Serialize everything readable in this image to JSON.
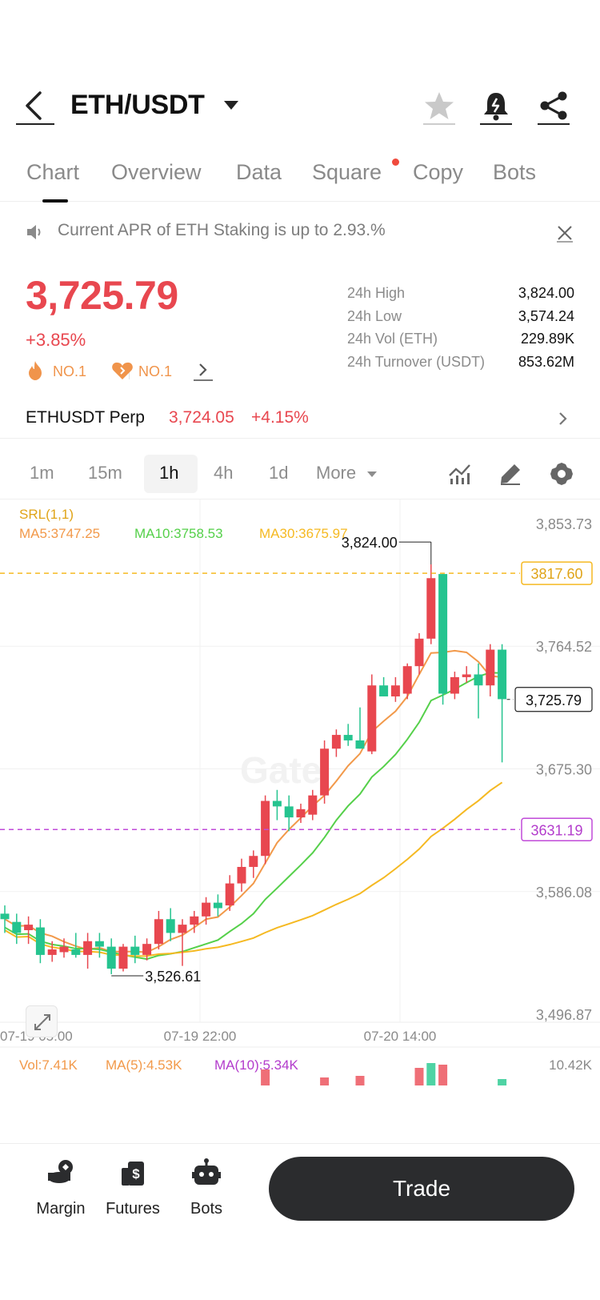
{
  "header": {
    "pair": "ETH/USDT",
    "icons": [
      "back-arrow-icon",
      "chevron-down-icon",
      "star-icon",
      "bell-icon",
      "share-icon"
    ]
  },
  "tabs": [
    {
      "label": "Chart",
      "active": true
    },
    {
      "label": "Overview"
    },
    {
      "label": "Data"
    },
    {
      "label": "Square",
      "badge": true
    },
    {
      "label": "Copy"
    },
    {
      "label": "Bots"
    }
  ],
  "announcement": {
    "text": "Current APR of ETH Staking is up to 2.93.%"
  },
  "price": {
    "last": "3,725.79",
    "change": "+3.85%",
    "rank_hot": "NO.1",
    "rank_fav": "NO.1"
  },
  "stats": [
    {
      "label": "24h High",
      "value": "3,824.00"
    },
    {
      "label": "24h Low",
      "value": "3,574.24"
    },
    {
      "label": "24h Vol (ETH)",
      "value": "229.89K"
    },
    {
      "label": "24h Turnover (USDT)",
      "value": "853.62M"
    }
  ],
  "perp": {
    "name": "ETHUSDT Perp",
    "price": "3,724.05",
    "change": "+4.15%"
  },
  "timeframes": [
    {
      "label": "1m"
    },
    {
      "label": "15m"
    },
    {
      "label": "1h",
      "active": true
    },
    {
      "label": "4h"
    },
    {
      "label": "1d"
    },
    {
      "label": "More"
    }
  ],
  "chart_data": {
    "type": "candlestick",
    "indicator_label": "SRL(1,1)",
    "ma_labels": {
      "ma5": "MA5:3747.25",
      "ma10": "MA10:3758.53",
      "ma30": "MA30:3675.97"
    },
    "colors": {
      "up": "#e8474f",
      "down": "#25c48f",
      "ma5": "#f2994a",
      "ma10": "#55d04a",
      "ma30": "#f5b922",
      "srl_high": "#f5b922",
      "srl_low": "#c04ad8"
    },
    "y_ticks": [
      "3,853.73",
      "3,764.52",
      "3,675.30",
      "3,586.08",
      "3,496.87"
    ],
    "ylim": [
      3496.87,
      3853.73
    ],
    "x_ticks": [
      "07-19 05:00",
      "07-19 22:00",
      "07-20 14:00"
    ],
    "high_label": "3,824.00",
    "low_label": "3,526.61",
    "srl_high": "3817.60",
    "srl_low": "3631.19",
    "srl_high_value": 3817.6,
    "srl_low_value": 3631.19,
    "last_label": "3,725.79",
    "last_value": 3725.79,
    "watermark": "Gate",
    "candles": [
      {
        "o": 3570,
        "h": 3576,
        "l": 3556,
        "c": 3566
      },
      {
        "o": 3564,
        "h": 3570,
        "l": 3548,
        "c": 3556
      },
      {
        "o": 3558,
        "h": 3568,
        "l": 3548,
        "c": 3562
      },
      {
        "o": 3560,
        "h": 3566,
        "l": 3534,
        "c": 3540
      },
      {
        "o": 3540,
        "h": 3550,
        "l": 3535,
        "c": 3544
      },
      {
        "o": 3542,
        "h": 3552,
        "l": 3538,
        "c": 3546
      },
      {
        "o": 3544,
        "h": 3556,
        "l": 3538,
        "c": 3540
      },
      {
        "o": 3540,
        "h": 3556,
        "l": 3530,
        "c": 3550
      },
      {
        "o": 3550,
        "h": 3556,
        "l": 3538,
        "c": 3546
      },
      {
        "o": 3546,
        "h": 3552,
        "l": 3526,
        "c": 3530
      },
      {
        "o": 3530,
        "h": 3548,
        "l": 3528,
        "c": 3546
      },
      {
        "o": 3546,
        "h": 3554,
        "l": 3534,
        "c": 3540
      },
      {
        "o": 3540,
        "h": 3552,
        "l": 3536,
        "c": 3548
      },
      {
        "o": 3548,
        "h": 3572,
        "l": 3544,
        "c": 3566
      },
      {
        "o": 3566,
        "h": 3574,
        "l": 3550,
        "c": 3556
      },
      {
        "o": 3556,
        "h": 3566,
        "l": 3532,
        "c": 3562
      },
      {
        "o": 3562,
        "h": 3572,
        "l": 3556,
        "c": 3568
      },
      {
        "o": 3568,
        "h": 3582,
        "l": 3562,
        "c": 3578
      },
      {
        "o": 3578,
        "h": 3584,
        "l": 3568,
        "c": 3574
      },
      {
        "o": 3576,
        "h": 3598,
        "l": 3572,
        "c": 3592
      },
      {
        "o": 3592,
        "h": 3610,
        "l": 3586,
        "c": 3604
      },
      {
        "o": 3604,
        "h": 3616,
        "l": 3596,
        "c": 3612
      },
      {
        "o": 3612,
        "h": 3656,
        "l": 3606,
        "c": 3652
      },
      {
        "o": 3652,
        "h": 3660,
        "l": 3638,
        "c": 3648
      },
      {
        "o": 3648,
        "h": 3656,
        "l": 3630,
        "c": 3640
      },
      {
        "o": 3640,
        "h": 3650,
        "l": 3636,
        "c": 3646
      },
      {
        "o": 3642,
        "h": 3660,
        "l": 3638,
        "c": 3656
      },
      {
        "o": 3656,
        "h": 3696,
        "l": 3650,
        "c": 3690
      },
      {
        "o": 3690,
        "h": 3704,
        "l": 3684,
        "c": 3700
      },
      {
        "o": 3700,
        "h": 3708,
        "l": 3692,
        "c": 3696
      },
      {
        "o": 3696,
        "h": 3720,
        "l": 3690,
        "c": 3690
      },
      {
        "o": 3688,
        "h": 3744,
        "l": 3686,
        "c": 3736
      },
      {
        "o": 3736,
        "h": 3742,
        "l": 3728,
        "c": 3728
      },
      {
        "o": 3728,
        "h": 3742,
        "l": 3724,
        "c": 3736
      },
      {
        "o": 3730,
        "h": 3752,
        "l": 3726,
        "c": 3750
      },
      {
        "o": 3750,
        "h": 3774,
        "l": 3744,
        "c": 3770
      },
      {
        "o": 3770,
        "h": 3824,
        "l": 3766,
        "c": 3814
      },
      {
        "o": 3817,
        "h": 3817,
        "l": 3722,
        "c": 3730
      },
      {
        "o": 3730,
        "h": 3746,
        "l": 3726,
        "c": 3742
      },
      {
        "o": 3742,
        "h": 3750,
        "l": 3738,
        "c": 3744
      },
      {
        "o": 3744,
        "h": 3752,
        "l": 3712,
        "c": 3736
      },
      {
        "o": 3736,
        "h": 3766,
        "l": 3728,
        "c": 3762
      },
      {
        "o": 3762,
        "h": 3766,
        "l": 3680,
        "c": 3726
      }
    ],
    "volume": {
      "label_vol": "Vol:7.41K",
      "label_ma5": "MA(5):4.53K",
      "label_ma10": "MA(10):5.34K",
      "max_label": "10.42K"
    }
  },
  "bottom_bar": {
    "items": [
      {
        "label": "Margin",
        "icon": "margin-icon"
      },
      {
        "label": "Futures",
        "icon": "futures-icon"
      },
      {
        "label": "Bots",
        "icon": "robot-icon"
      }
    ],
    "trade_label": "Trade"
  }
}
